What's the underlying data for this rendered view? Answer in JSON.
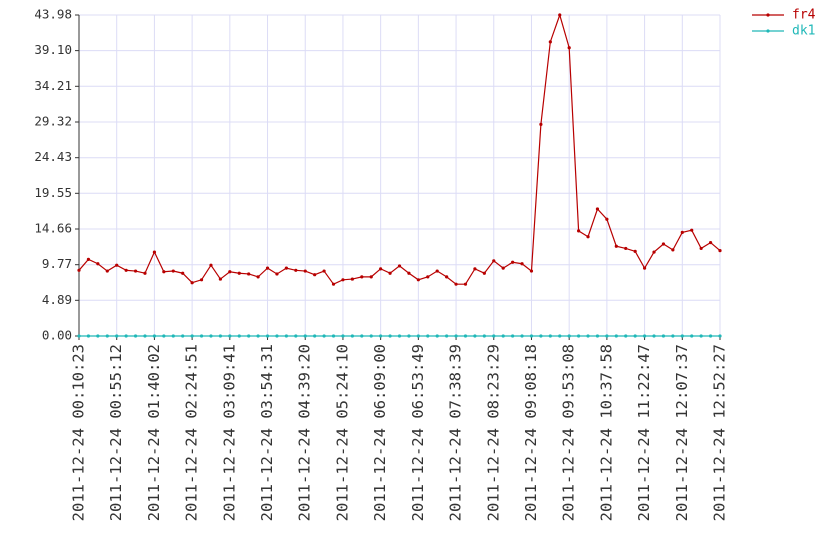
{
  "chart_data": {
    "type": "line",
    "categories": [
      "2011-12-24 00:10:23",
      null,
      null,
      null,
      "2011-12-24 00:55:12",
      null,
      null,
      null,
      "2011-12-24 01:40:02",
      null,
      null,
      null,
      "2011-12-24 02:24:51",
      null,
      null,
      null,
      "2011-12-24 03:09:41",
      null,
      null,
      null,
      "2011-12-24 03:54:31",
      null,
      null,
      null,
      "2011-12-24 04:39:20",
      null,
      null,
      null,
      "2011-12-24 05:24:10",
      null,
      null,
      null,
      "2011-12-24 06:09:00",
      null,
      null,
      null,
      "2011-12-24 06:53:49",
      null,
      null,
      null,
      "2011-12-24 07:38:39",
      null,
      null,
      null,
      "2011-12-24 08:23:29",
      null,
      null,
      null,
      "2011-12-24 09:08:18",
      null,
      null,
      null,
      "2011-12-24 09:53:08",
      null,
      null,
      null,
      "2011-12-24 10:37:58",
      null,
      null,
      null,
      "2011-12-24 11:22:47",
      null,
      null,
      null,
      "2011-12-24 12:07:37",
      null,
      null,
      null,
      "2011-12-24 12:52:27"
    ],
    "series": [
      {
        "name": "fr4",
        "color": "#b80000",
        "values": [
          9.0,
          10.5,
          9.9,
          8.9,
          9.7,
          9.0,
          8.9,
          8.6,
          11.5,
          8.8,
          8.9,
          8.6,
          7.3,
          7.7,
          9.7,
          7.8,
          8.8,
          8.6,
          8.5,
          8.1,
          9.3,
          8.5,
          9.3,
          9.0,
          8.9,
          8.4,
          8.9,
          7.1,
          7.7,
          7.8,
          8.1,
          8.1,
          9.2,
          8.6,
          9.6,
          8.6,
          7.7,
          8.1,
          8.9,
          8.1,
          7.1,
          7.1,
          9.2,
          8.6,
          10.3,
          9.3,
          10.1,
          9.9,
          8.9,
          29.0,
          40.3,
          43.98,
          39.5,
          14.4,
          13.6,
          17.4,
          16.0,
          12.3,
          12.0,
          11.6,
          9.3,
          11.5,
          12.6,
          11.8,
          14.2,
          14.5,
          12.0,
          12.8,
          11.7
        ]
      },
      {
        "name": "dk1",
        "color": "#20b8b8",
        "values": [
          0,
          0,
          0,
          0,
          0,
          0,
          0,
          0,
          0,
          0,
          0,
          0,
          0,
          0,
          0,
          0,
          0,
          0,
          0,
          0,
          0,
          0,
          0,
          0,
          0,
          0,
          0,
          0,
          0,
          0,
          0,
          0,
          0,
          0,
          0,
          0,
          0,
          0,
          0,
          0,
          0,
          0,
          0,
          0,
          0,
          0,
          0,
          0,
          0,
          0,
          0,
          0,
          0,
          0,
          0,
          0,
          0,
          0,
          0,
          0,
          0,
          0,
          0,
          0,
          0,
          0,
          0,
          0,
          0
        ]
      }
    ],
    "ylim": [
      0,
      43.98
    ],
    "yticks": [
      {
        "value": 0,
        "label": "0.00"
      },
      4.89,
      9.77,
      14.66,
      19.55,
      24.43,
      29.32,
      34.21,
      {
        "value": 39.1,
        "label": "39.10"
      },
      43.98
    ],
    "grid": true,
    "legend": "top-right"
  }
}
